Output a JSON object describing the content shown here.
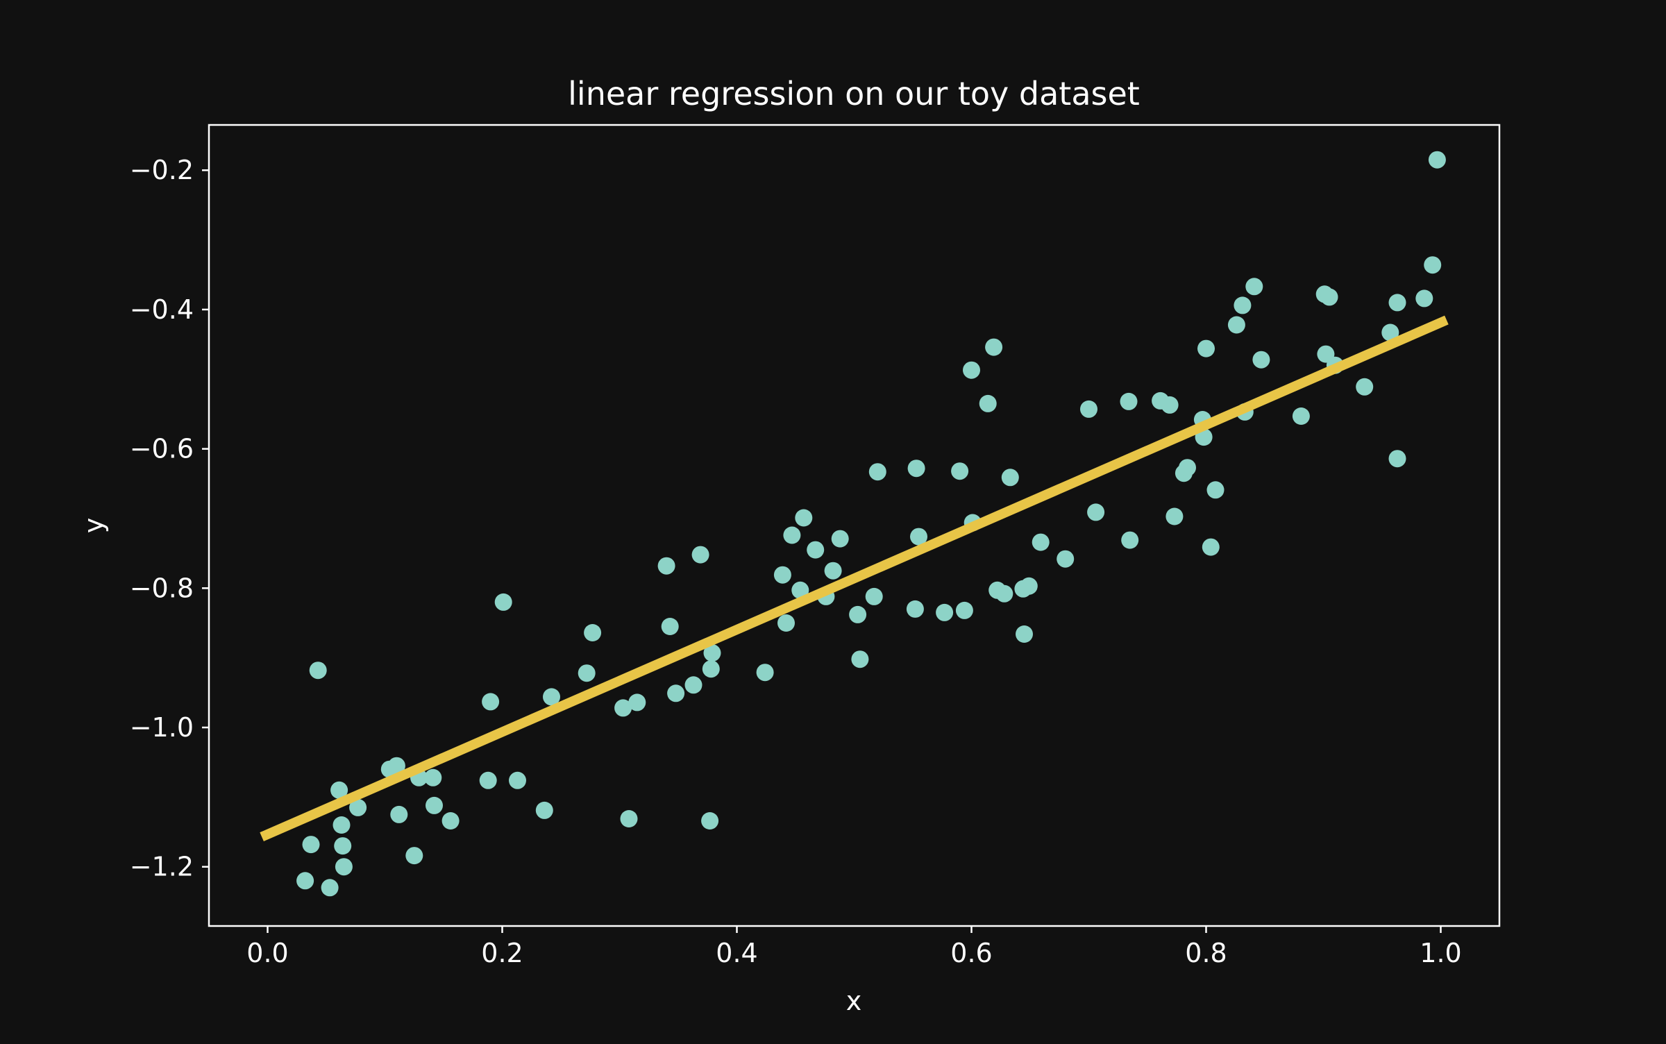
{
  "colors": {
    "background": "#111111",
    "points": "#8dd3c7",
    "fit_line": "#e8c547",
    "axes": "#ffffff",
    "text": "#ffffff"
  },
  "chart_data": {
    "type": "scatter",
    "title": "linear regression on our toy dataset",
    "xlabel": "x",
    "ylabel": "y",
    "xlim": [
      -0.05,
      1.05
    ],
    "ylim": [
      -1.285,
      -0.135
    ],
    "xticks": [
      0.0,
      0.2,
      0.4,
      0.6,
      0.8,
      1.0
    ],
    "xtick_labels": [
      "0.0",
      "0.2",
      "0.4",
      "0.6",
      "0.8",
      "1.0"
    ],
    "yticks": [
      -0.2,
      -0.4,
      -0.6,
      -0.8,
      -1.0,
      -1.2
    ],
    "ytick_labels": [
      "−0.2",
      "−0.4",
      "−0.6",
      "−0.8",
      "−1.0",
      "−1.2"
    ],
    "grid": false,
    "series": [
      {
        "kind": "scatter",
        "points": [
          [
            0.032,
            -1.22
          ],
          [
            0.037,
            -1.168
          ],
          [
            0.043,
            -0.918
          ],
          [
            0.053,
            -1.23
          ],
          [
            0.061,
            -1.09
          ],
          [
            0.063,
            -1.14
          ],
          [
            0.064,
            -1.17
          ],
          [
            0.065,
            -1.2
          ],
          [
            0.077,
            -1.115
          ],
          [
            0.104,
            -1.06
          ],
          [
            0.11,
            -1.055
          ],
          [
            0.112,
            -1.125
          ],
          [
            0.125,
            -1.184
          ],
          [
            0.129,
            -1.072
          ],
          [
            0.141,
            -1.072
          ],
          [
            0.142,
            -1.112
          ],
          [
            0.156,
            -1.134
          ],
          [
            0.188,
            -1.076
          ],
          [
            0.19,
            -0.963
          ],
          [
            0.201,
            -0.82
          ],
          [
            0.213,
            -1.076
          ],
          [
            0.236,
            -1.119
          ],
          [
            0.242,
            -0.956
          ],
          [
            0.272,
            -0.922
          ],
          [
            0.277,
            -0.864
          ],
          [
            0.303,
            -0.972
          ],
          [
            0.308,
            -1.131
          ],
          [
            0.315,
            -0.964
          ],
          [
            0.34,
            -0.768
          ],
          [
            0.343,
            -0.855
          ],
          [
            0.348,
            -0.951
          ],
          [
            0.363,
            -0.939
          ],
          [
            0.369,
            -0.752
          ],
          [
            0.377,
            -1.134
          ],
          [
            0.378,
            -0.916
          ],
          [
            0.379,
            -0.893
          ],
          [
            0.424,
            -0.921
          ],
          [
            0.439,
            -0.781
          ],
          [
            0.442,
            -0.85
          ],
          [
            0.447,
            -0.724
          ],
          [
            0.454,
            -0.803
          ],
          [
            0.457,
            -0.699
          ],
          [
            0.467,
            -0.745
          ],
          [
            0.476,
            -0.812
          ],
          [
            0.482,
            -0.775
          ],
          [
            0.488,
            -0.729
          ],
          [
            0.503,
            -0.838
          ],
          [
            0.505,
            -0.902
          ],
          [
            0.517,
            -0.812
          ],
          [
            0.52,
            -0.633
          ],
          [
            0.552,
            -0.83
          ],
          [
            0.553,
            -0.628
          ],
          [
            0.555,
            -0.726
          ],
          [
            0.577,
            -0.835
          ],
          [
            0.59,
            -0.632
          ],
          [
            0.594,
            -0.832
          ],
          [
            0.6,
            -0.487
          ],
          [
            0.601,
            -0.706
          ],
          [
            0.614,
            -0.535
          ],
          [
            0.619,
            -0.454
          ],
          [
            0.622,
            -0.803
          ],
          [
            0.628,
            -0.808
          ],
          [
            0.633,
            -0.641
          ],
          [
            0.644,
            -0.801
          ],
          [
            0.645,
            -0.866
          ],
          [
            0.649,
            -0.797
          ],
          [
            0.659,
            -0.734
          ],
          [
            0.68,
            -0.758
          ],
          [
            0.7,
            -0.543
          ],
          [
            0.706,
            -0.691
          ],
          [
            0.734,
            -0.532
          ],
          [
            0.735,
            -0.731
          ],
          [
            0.761,
            -0.531
          ],
          [
            0.769,
            -0.537
          ],
          [
            0.773,
            -0.697
          ],
          [
            0.781,
            -0.635
          ],
          [
            0.784,
            -0.627
          ],
          [
            0.797,
            -0.558
          ],
          [
            0.798,
            -0.583
          ],
          [
            0.8,
            -0.456
          ],
          [
            0.804,
            -0.741
          ],
          [
            0.808,
            -0.659
          ],
          [
            0.826,
            -0.422
          ],
          [
            0.831,
            -0.394
          ],
          [
            0.833,
            -0.547
          ],
          [
            0.841,
            -0.367
          ],
          [
            0.847,
            -0.472
          ],
          [
            0.881,
            -0.553
          ],
          [
            0.901,
            -0.378
          ],
          [
            0.902,
            -0.464
          ],
          [
            0.905,
            -0.382
          ],
          [
            0.91,
            -0.48
          ],
          [
            0.935,
            -0.511
          ],
          [
            0.957,
            -0.433
          ],
          [
            0.963,
            -0.39
          ],
          [
            0.963,
            -0.614
          ],
          [
            0.986,
            -0.384
          ],
          [
            0.993,
            -0.336
          ],
          [
            0.997,
            -0.185
          ]
        ]
      },
      {
        "kind": "line",
        "points": [
          [
            -0.005,
            -1.157
          ],
          [
            1.005,
            -0.415
          ]
        ]
      }
    ]
  }
}
